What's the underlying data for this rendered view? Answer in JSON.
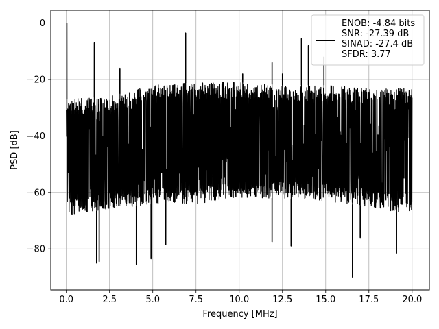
{
  "chart_data": {
    "type": "line",
    "xlabel": "Frequency [MHz]",
    "ylabel": "PSD [dB]",
    "xlim": [
      -0.9,
      21.0
    ],
    "ylim": [
      -94.5,
      4.5
    ],
    "xticks": [
      0.0,
      2.5,
      5.0,
      7.5,
      10.0,
      12.5,
      15.0,
      17.5,
      20.0
    ],
    "xtick_labels": [
      "0.0",
      "2.5",
      "5.0",
      "7.5",
      "10.0",
      "12.5",
      "15.0",
      "17.5",
      "20.0"
    ],
    "yticks": [
      0,
      -20,
      -40,
      -60,
      -80
    ],
    "ytick_labels": [
      "0",
      "−20",
      "−40",
      "−60",
      "−80"
    ],
    "grid": true,
    "legend_position": "top-right",
    "line_color": "#000000",
    "series": [
      {
        "legend_lines": [
          "ENOB: -4.84 bits",
          "SNR: -27.39 dB",
          "SINAD: -27.4 dB",
          "SFDR: 3.77"
        ],
        "x_range": [
          0.0,
          20.0
        ],
        "noise_upper_envelope": [
          [
            0.0,
            -27
          ],
          [
            2.5,
            -26
          ],
          [
            5.0,
            -22
          ],
          [
            7.5,
            -21
          ],
          [
            10.0,
            -21
          ],
          [
            12.5,
            -22
          ],
          [
            15.0,
            -22
          ],
          [
            17.5,
            -23
          ],
          [
            20.0,
            -23
          ]
        ],
        "noise_lower_envelope": [
          [
            0.0,
            -68
          ],
          [
            2.5,
            -66
          ],
          [
            5.0,
            -64
          ],
          [
            7.5,
            -64
          ],
          [
            10.0,
            -62
          ],
          [
            12.5,
            -62
          ],
          [
            15.0,
            -63
          ],
          [
            17.5,
            -65
          ],
          [
            20.0,
            -68
          ]
        ],
        "spurs": [
          {
            "x": 0.03,
            "y": 0
          },
          {
            "x": 1.62,
            "y": -7
          },
          {
            "x": 6.9,
            "y": -3.5
          },
          {
            "x": 3.1,
            "y": -16
          },
          {
            "x": 13.6,
            "y": -5.5
          },
          {
            "x": 14.0,
            "y": -8
          },
          {
            "x": 11.9,
            "y": -14
          },
          {
            "x": 14.9,
            "y": -12
          },
          {
            "x": 12.5,
            "y": -18
          },
          {
            "x": 10.2,
            "y": -18
          }
        ],
        "dips": [
          {
            "x": 1.75,
            "y": -85
          },
          {
            "x": 1.9,
            "y": -84.5
          },
          {
            "x": 4.05,
            "y": -85.5
          },
          {
            "x": 4.9,
            "y": -83.5
          },
          {
            "x": 16.55,
            "y": -90
          },
          {
            "x": 19.1,
            "y": -81.5
          },
          {
            "x": 5.75,
            "y": -78.5
          },
          {
            "x": 11.9,
            "y": -77.5
          },
          {
            "x": 13.0,
            "y": -79
          },
          {
            "x": 17.0,
            "y": -76
          }
        ]
      }
    ]
  }
}
